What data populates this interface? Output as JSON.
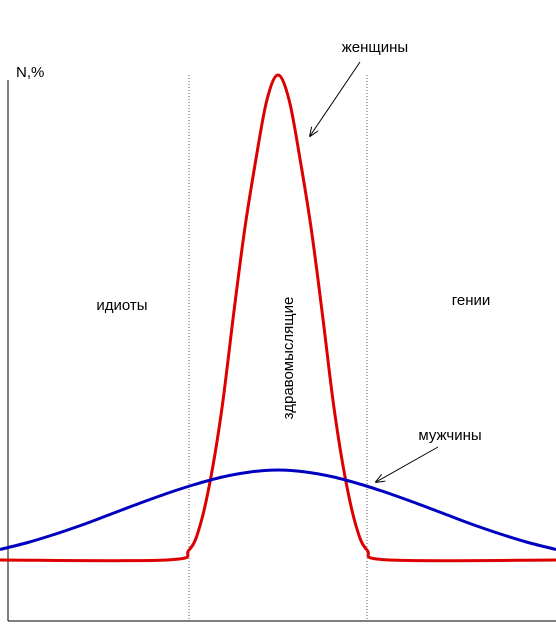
{
  "chart_data": {
    "type": "line",
    "title": "",
    "ylabel": "N,%",
    "xlabel": "",
    "grid": false,
    "legend": "none",
    "xlim": [
      -5,
      5
    ],
    "ylim": [
      0,
      100
    ],
    "boundaries": [
      -1.6,
      1.6
    ],
    "regions": [
      {
        "name": "идиоты"
      },
      {
        "name": "здравомыслящие",
        "orientation": "vertical"
      },
      {
        "name": "гении"
      }
    ],
    "series": [
      {
        "name": "женщины",
        "color": "#dd0000",
        "x": [
          -5.0,
          -2.0,
          -1.6,
          -1.4,
          -1.2,
          -1.0,
          -0.8,
          -0.6,
          -0.4,
          -0.2,
          0.0,
          0.2,
          0.4,
          0.6,
          0.8,
          1.0,
          1.2,
          1.4,
          1.6,
          2.0,
          5.0
        ],
        "y": [
          2,
          2,
          4,
          9,
          19,
          33,
          51,
          68,
          82,
          94,
          99,
          94,
          82,
          68,
          51,
          33,
          19,
          9,
          4,
          2,
          2
        ]
      },
      {
        "name": "мужчины",
        "color": "#0000c0",
        "x": [
          -5.0,
          -4.5,
          -4.0,
          -3.5,
          -3.0,
          -2.5,
          -2.0,
          -1.5,
          -1.0,
          -0.5,
          0.0,
          0.5,
          1.0,
          1.5,
          2.0,
          2.5,
          3.0,
          3.5,
          4.0,
          4.5,
          5.0
        ],
        "y": [
          4.1,
          5.5,
          7.2,
          9.1,
          11.2,
          13.3,
          15.3,
          17.1,
          18.6,
          19.6,
          20,
          19.6,
          18.6,
          17.1,
          15.3,
          13.3,
          11.2,
          9.1,
          7.2,
          5.5,
          4.1
        ]
      }
    ]
  }
}
